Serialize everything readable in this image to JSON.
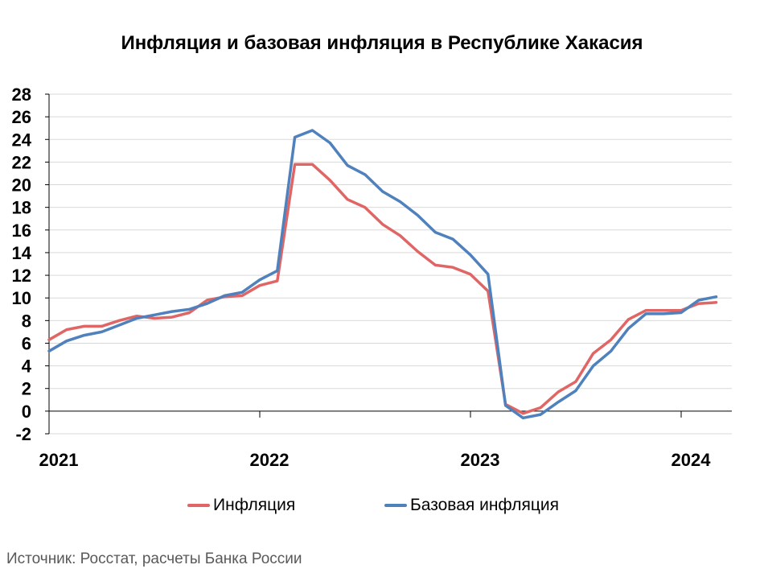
{
  "chart_data": {
    "type": "line",
    "title": "Инфляция и базовая инфляция в Республике Хакасия",
    "source": "Источник: Росстат, расчеты Банка России",
    "xlabel": "",
    "ylabel": "",
    "ylim": [
      -2,
      28
    ],
    "yticks": [
      -2,
      0,
      2,
      4,
      6,
      8,
      10,
      12,
      14,
      16,
      18,
      20,
      22,
      24,
      26,
      28
    ],
    "year_labels": [
      "2021",
      "2022",
      "2023",
      "2024"
    ],
    "x": [
      "2021-01",
      "2021-02",
      "2021-03",
      "2021-04",
      "2021-05",
      "2021-06",
      "2021-07",
      "2021-08",
      "2021-09",
      "2021-10",
      "2021-11",
      "2021-12",
      "2022-01",
      "2022-02",
      "2022-03",
      "2022-04",
      "2022-05",
      "2022-06",
      "2022-07",
      "2022-08",
      "2022-09",
      "2022-10",
      "2022-11",
      "2022-12",
      "2023-01",
      "2023-02",
      "2023-03",
      "2023-04",
      "2023-05",
      "2023-06",
      "2023-07",
      "2023-08",
      "2023-09",
      "2023-10",
      "2023-11",
      "2023-12",
      "2024-01",
      "2024-02",
      "2024-03"
    ],
    "grid": true,
    "legend_position": "bottom",
    "series": [
      {
        "name": "Инфляция",
        "color": "#e06666",
        "values": [
          6.3,
          7.2,
          7.5,
          7.5,
          8.0,
          8.4,
          8.2,
          8.3,
          8.7,
          9.8,
          10.1,
          10.2,
          11.1,
          11.5,
          21.8,
          21.8,
          20.4,
          18.7,
          18.0,
          16.5,
          15.5,
          14.1,
          12.9,
          12.7,
          12.1,
          10.6,
          0.6,
          -0.2,
          0.3,
          1.7,
          2.6,
          5.1,
          6.3,
          8.1,
          8.9,
          8.9,
          8.9,
          9.5,
          9.6
        ]
      },
      {
        "name": "Базовая инфляция",
        "color": "#4f81bd",
        "values": [
          5.3,
          6.2,
          6.7,
          7.0,
          7.6,
          8.2,
          8.5,
          8.8,
          9.0,
          9.5,
          10.2,
          10.5,
          11.6,
          12.4,
          24.2,
          24.8,
          23.7,
          21.7,
          20.9,
          19.4,
          18.5,
          17.3,
          15.8,
          15.2,
          13.8,
          12.1,
          0.5,
          -0.6,
          -0.3,
          0.8,
          1.8,
          4.0,
          5.3,
          7.3,
          8.6,
          8.6,
          8.7,
          9.8,
          10.1
        ]
      }
    ]
  }
}
